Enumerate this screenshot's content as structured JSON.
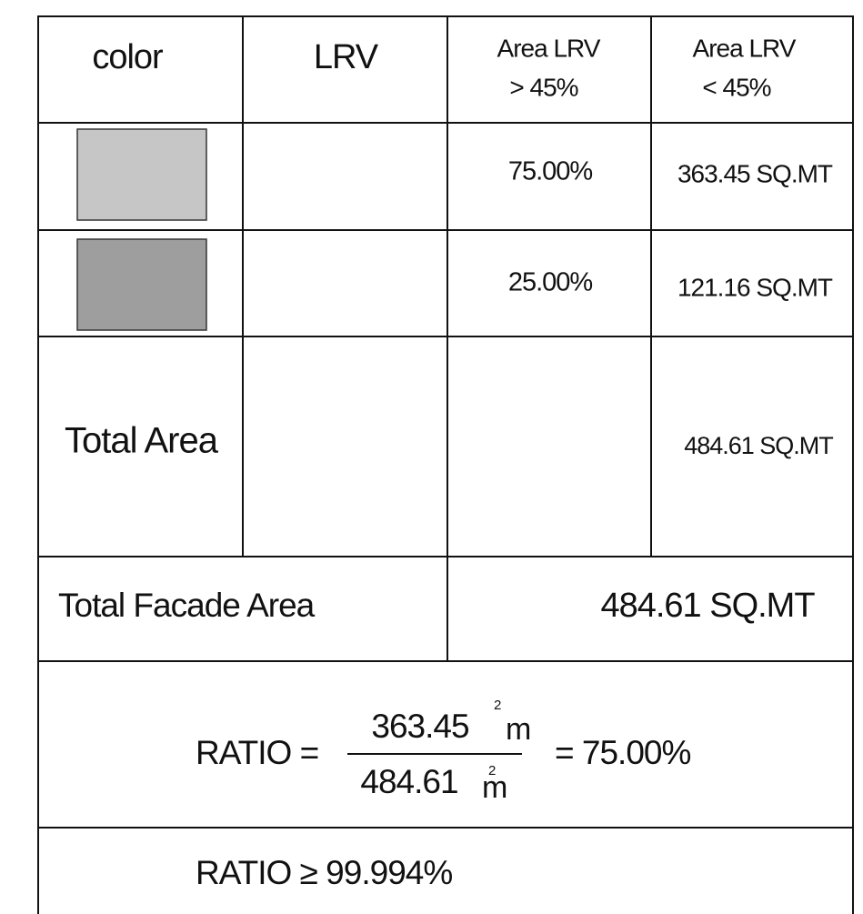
{
  "table": {
    "header": [
      "color",
      "LRV",
      [
        "Area LRV",
        "> 45%"
      ],
      [
        "Area LRV",
        "< 45%"
      ]
    ],
    "rows": [
      {
        "swatch_color": "#c6c6c6",
        "above_45": "75.00%",
        "below_45": "363.45 SQ.MT"
      },
      {
        "swatch_color": "#9e9e9e",
        "above_45": "25.00%",
        "below_45": "121.16 SQ.MT"
      }
    ],
    "total_area": {
      "label": "Total Area",
      "value": "484.61 SQ.MT"
    },
    "total_facade_area": {
      "label": "Total Facade Area",
      "value": "484.61 SQ.MT"
    },
    "ratio": {
      "label": "RATIO =",
      "numerator": "363.45",
      "numerator_unit": "m",
      "numerator_exp": "2",
      "denominator": "484.61",
      "denominator_unit": "m",
      "denominator_exp": "2",
      "result": "= 75.00%"
    },
    "ratio_requirement": "RATIO ≥ 99.994%"
  }
}
